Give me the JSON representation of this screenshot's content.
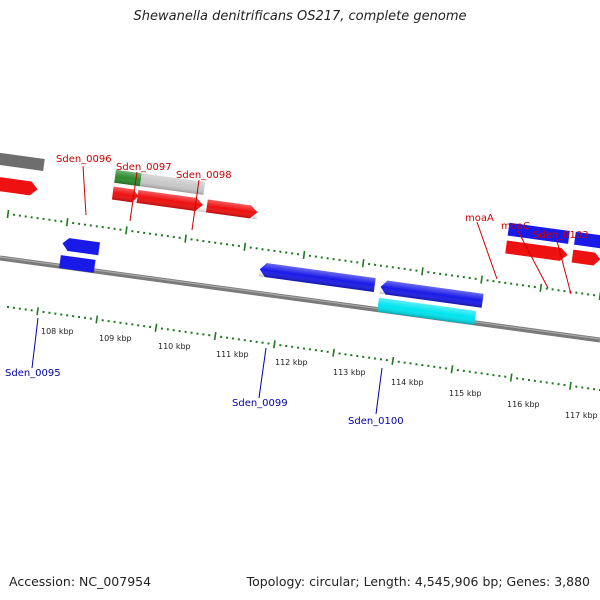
{
  "title": "Shewanella denitrificans OS217, complete genome",
  "footer": {
    "accession": "Accession: NC_007954",
    "summary": "Topology: circular; Length: 4,545,906 bp; Genes: 3,880"
  },
  "colors": {
    "backbone": "#7a7a7a",
    "forward_gene": "#ee1111",
    "reverse_gene": "#1a1ae8",
    "forward_label": "#cc0000",
    "reverse_label": "#0000aa",
    "tick": "#1f7a1f",
    "rna": "#00e5f0",
    "pseudo_light": "#c8c8c8",
    "pseudo_dark": "#6e6e6e",
    "green_gene": "#2e8b2e"
  },
  "scale_labels": [
    "108 kbp",
    "109 kbp",
    "110 kbp",
    "111 kbp",
    "112 kbp",
    "113 kbp",
    "114 kbp",
    "115 kbp",
    "116 kbp",
    "117 kbp"
  ],
  "forward_labels": [
    "Sden_0096",
    "Sden_0097",
    "Sden_0098",
    "moaA",
    "moaC",
    "Sden_0103"
  ],
  "reverse_labels": [
    "Sden_0095",
    "Sden_0099",
    "Sden_0100"
  ]
}
